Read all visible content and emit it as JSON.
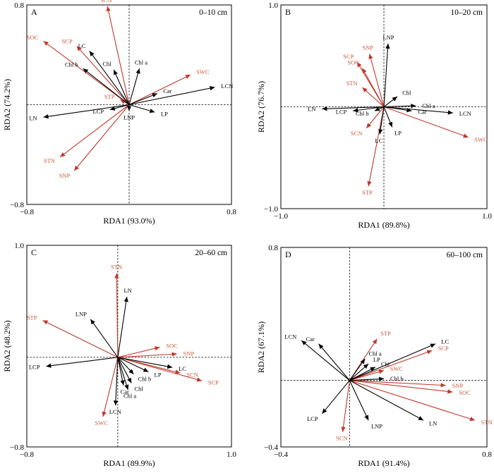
{
  "colors": {
    "soil": "#c0392b",
    "leaf": "#000000",
    "soil_text": "#c55a3a"
  },
  "chart_data": [
    {
      "type": "scatter",
      "panel": "A",
      "depth": "0–10 cm",
      "xlabel": "RDA1 (93.0%)",
      "ylabel": "RDA2 (74.2%)",
      "xlim": [
        -0.8,
        0.8
      ],
      "ylim": [
        -0.8,
        0.8
      ],
      "xticks": [
        "−0.8",
        "0.8"
      ],
      "yticks": [
        "0.8",
        "−0.8"
      ],
      "series": [
        {
          "name": "SCN",
          "x": -0.17,
          "y": 0.79,
          "group": "soil"
        },
        {
          "name": "SOC",
          "x": -0.67,
          "y": 0.51,
          "group": "soil"
        },
        {
          "name": "SCP",
          "x": -0.41,
          "y": 0.47,
          "group": "soil"
        },
        {
          "name": "STP",
          "x": -0.07,
          "y": 0.04,
          "group": "soil"
        },
        {
          "name": "SWC",
          "x": 0.48,
          "y": 0.24,
          "group": "soil"
        },
        {
          "name": "STN",
          "x": -0.54,
          "y": -0.42,
          "group": "soil"
        },
        {
          "name": "SNP",
          "x": -0.43,
          "y": -0.53,
          "group": "soil"
        },
        {
          "name": "LC",
          "x": -0.31,
          "y": 0.43,
          "group": "leaf"
        },
        {
          "name": "Chl",
          "x": -0.12,
          "y": 0.28,
          "group": "leaf"
        },
        {
          "name": "Chl b",
          "x": -0.36,
          "y": 0.29,
          "group": "leaf"
        },
        {
          "name": "Chl a",
          "x": 0.08,
          "y": 0.29,
          "group": "leaf"
        },
        {
          "name": "Car",
          "x": 0.22,
          "y": 0.09,
          "group": "leaf"
        },
        {
          "name": "LCN",
          "x": 0.67,
          "y": 0.14,
          "group": "leaf"
        },
        {
          "name": "LN",
          "x": -0.67,
          "y": -0.1,
          "group": "leaf"
        },
        {
          "name": "LCP",
          "x": -0.15,
          "y": -0.04,
          "group": "leaf"
        },
        {
          "name": "LNP",
          "x": 0.0,
          "y": -0.05,
          "group": "leaf"
        },
        {
          "name": "LP",
          "x": 0.2,
          "y": -0.06,
          "group": "leaf"
        }
      ]
    },
    {
      "type": "scatter",
      "panel": "B",
      "depth": "10–20 cm",
      "xlabel": "RDA1 (89.8%)",
      "ylabel": "RDA2 (76.7%)",
      "xlim": [
        -1.0,
        1.0
      ],
      "ylim": [
        -1.0,
        1.0
      ],
      "xticks": [
        "−1.0",
        "1.0"
      ],
      "yticks": [
        "1.0",
        "−1.0"
      ],
      "series": [
        {
          "name": "SNP",
          "x": -0.14,
          "y": 0.52,
          "group": "soil"
        },
        {
          "name": "SCP",
          "x": -0.26,
          "y": 0.44,
          "group": "soil"
        },
        {
          "name": "SOC",
          "x": -0.21,
          "y": 0.38,
          "group": "soil"
        },
        {
          "name": "STN",
          "x": -0.21,
          "y": 0.19,
          "group": "soil"
        },
        {
          "name": "SCN",
          "x": -0.17,
          "y": -0.21,
          "group": "soil"
        },
        {
          "name": "STP",
          "x": -0.15,
          "y": -0.78,
          "group": "soil"
        },
        {
          "name": "SWC",
          "x": 0.82,
          "y": -0.3,
          "group": "soil"
        },
        {
          "name": "LNP",
          "x": 0.04,
          "y": 0.62,
          "group": "leaf"
        },
        {
          "name": "Chl",
          "x": 0.13,
          "y": 0.1,
          "group": "leaf"
        },
        {
          "name": "Chl a",
          "x": 0.31,
          "y": 0.01,
          "group": "leaf"
        },
        {
          "name": "Car",
          "x": 0.27,
          "y": -0.04,
          "group": "leaf"
        },
        {
          "name": "LCN",
          "x": 0.67,
          "y": -0.06,
          "group": "leaf"
        },
        {
          "name": "LN",
          "x": -0.6,
          "y": -0.02,
          "group": "leaf"
        },
        {
          "name": "LCP",
          "x": -0.3,
          "y": -0.04,
          "group": "leaf"
        },
        {
          "name": "Chl b",
          "x": -0.09,
          "y": -0.04,
          "group": "leaf"
        },
        {
          "name": "LC",
          "x": -0.04,
          "y": -0.27,
          "group": "leaf"
        },
        {
          "name": "LP",
          "x": 0.08,
          "y": -0.2,
          "group": "leaf"
        }
      ]
    },
    {
      "type": "scatter",
      "panel": "C",
      "depth": "20–60 cm",
      "xlabel": "RDA1 (89.9%)",
      "ylabel": "RDA2 (48.2%)",
      "xlim": [
        -0.8,
        1.0
      ],
      "ylim": [
        -0.8,
        1.0
      ],
      "xticks": [
        "−0.8",
        "1.0"
      ],
      "yticks": [
        "1.0",
        "−0.8"
      ],
      "series": [
        {
          "name": "STN",
          "x": -0.01,
          "y": 0.75,
          "group": "soil"
        },
        {
          "name": "STP",
          "x": -0.66,
          "y": 0.33,
          "group": "soil"
        },
        {
          "name": "SOC",
          "x": 0.37,
          "y": 0.09,
          "group": "soil"
        },
        {
          "name": "SNP",
          "x": 0.52,
          "y": 0.03,
          "group": "soil"
        },
        {
          "name": "SCN",
          "x": 0.55,
          "y": -0.14,
          "group": "soil"
        },
        {
          "name": "SCP",
          "x": 0.74,
          "y": -0.21,
          "group": "soil"
        },
        {
          "name": "SWC",
          "x": -0.13,
          "y": -0.53,
          "group": "soil"
        },
        {
          "name": "LN",
          "x": 0.08,
          "y": 0.54,
          "group": "leaf"
        },
        {
          "name": "LNP",
          "x": -0.24,
          "y": 0.34,
          "group": "leaf"
        },
        {
          "name": "LCP",
          "x": -0.63,
          "y": -0.08,
          "group": "leaf"
        },
        {
          "name": "LC",
          "x": 0.48,
          "y": -0.09,
          "group": "leaf"
        },
        {
          "name": "LP",
          "x": 0.27,
          "y": -0.13,
          "group": "leaf"
        },
        {
          "name": "Chl b",
          "x": 0.14,
          "y": -0.15,
          "group": "leaf"
        },
        {
          "name": "Chl",
          "x": 0.12,
          "y": -0.23,
          "group": "leaf"
        },
        {
          "name": "Car",
          "x": 0.05,
          "y": -0.25,
          "group": "leaf"
        },
        {
          "name": "Chl a",
          "x": 0.09,
          "y": -0.29,
          "group": "leaf"
        },
        {
          "name": "LCN",
          "x": -0.02,
          "y": -0.43,
          "group": "leaf"
        }
      ]
    },
    {
      "type": "scatter",
      "panel": "D",
      "depth": "60–100 cm",
      "xlabel": "RDA1 (91.4%)",
      "ylabel": "RDA2 (67.1%)",
      "xlim": [
        -0.4,
        0.8
      ],
      "ylim": [
        -0.4,
        0.8
      ],
      "xticks": [
        "−0.4",
        "0.8"
      ],
      "yticks": [
        "0.8",
        "−0.4"
      ],
      "series": [
        {
          "name": "STP",
          "x": 0.16,
          "y": 0.25,
          "group": "soil"
        },
        {
          "name": "SCP",
          "x": 0.48,
          "y": 0.18,
          "group": "soil"
        },
        {
          "name": "SWC",
          "x": 0.2,
          "y": 0.06,
          "group": "soil"
        },
        {
          "name": "SNP",
          "x": 0.56,
          "y": -0.03,
          "group": "soil"
        },
        {
          "name": "SOC",
          "x": 0.6,
          "y": -0.07,
          "group": "soil"
        },
        {
          "name": "STN",
          "x": 0.73,
          "y": -0.24,
          "group": "soil"
        },
        {
          "name": "SCN",
          "x": -0.04,
          "y": -0.31,
          "group": "soil"
        },
        {
          "name": "LCN",
          "x": -0.28,
          "y": 0.24,
          "group": "leaf"
        },
        {
          "name": "Car",
          "x": -0.18,
          "y": 0.22,
          "group": "leaf"
        },
        {
          "name": "Chl a",
          "x": 0.09,
          "y": 0.13,
          "group": "leaf"
        },
        {
          "name": "LP",
          "x": 0.11,
          "y": 0.1,
          "group": "leaf"
        },
        {
          "name": "Chl",
          "x": 0.15,
          "y": 0.08,
          "group": "leaf"
        },
        {
          "name": "LC",
          "x": 0.5,
          "y": 0.22,
          "group": "leaf"
        },
        {
          "name": "Chl b",
          "x": 0.2,
          "y": 0.01,
          "group": "leaf"
        },
        {
          "name": "LCP",
          "x": -0.16,
          "y": -0.2,
          "group": "leaf"
        },
        {
          "name": "LNP",
          "x": 0.11,
          "y": -0.24,
          "group": "leaf"
        },
        {
          "name": "LN",
          "x": 0.43,
          "y": -0.24,
          "group": "leaf"
        }
      ]
    }
  ]
}
